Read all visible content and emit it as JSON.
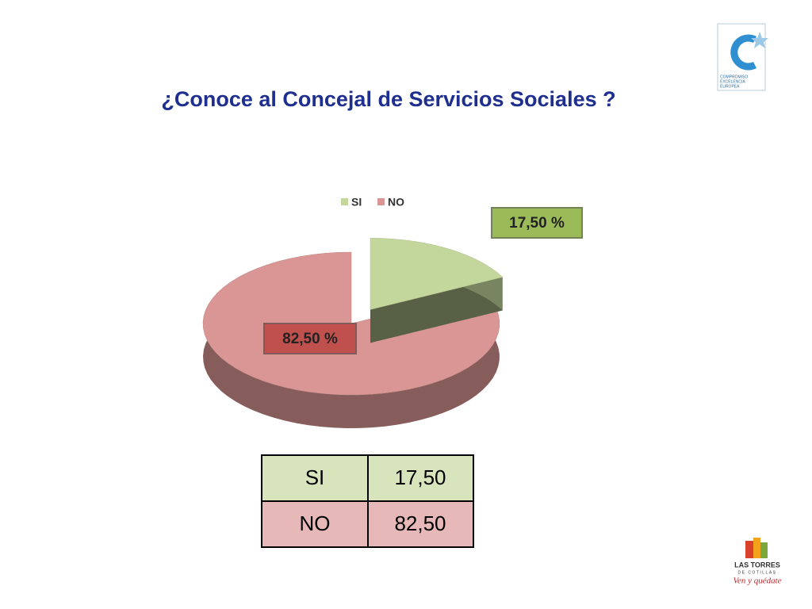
{
  "chart_data": {
    "type": "pie",
    "title": "¿Conoce al Concejal de Servicios Sociales ?",
    "categories": [
      "SI",
      "NO"
    ],
    "values": [
      17.5,
      82.5
    ],
    "value_labels": [
      "17,50 %",
      "82,50 %"
    ],
    "colors": [
      "#c3d69b",
      "#d99694"
    ],
    "legend": "top"
  },
  "table": {
    "rows": [
      [
        "SI",
        "17,50"
      ],
      [
        "NO",
        "82,50"
      ]
    ]
  },
  "logos": {
    "excellence": [
      "COMPROMISO",
      "EXCELENCIA",
      "EUROPEA"
    ],
    "town": [
      "LAS TORRES",
      "DE COTILLAS"
    ],
    "slogan": "Ven y quédate"
  }
}
